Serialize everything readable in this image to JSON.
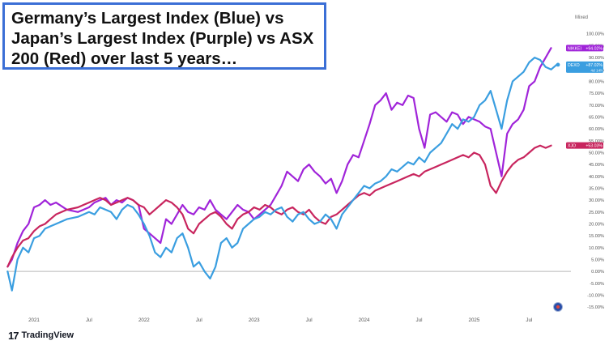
{
  "title": {
    "line1": "Germany’s Largest Index (Blue) vs",
    "line2": "Japan’s Largest Index (Purple) vs ASX",
    "line3": "200 (Red) over last 5 years…"
  },
  "scale_label": "Mixed",
  "brand": {
    "mark": "17",
    "name": "TradingView"
  },
  "colors": {
    "blue": "#3a9ee0",
    "purple": "#a024d9",
    "red": "#c8255e",
    "zero_line": "#b8b8b8",
    "axis_text": "#555555"
  },
  "chart_data": {
    "type": "line",
    "xlabel": "",
    "ylabel": "",
    "ylim": [
      -18,
      104
    ],
    "yticks": [
      -15,
      -10,
      -5,
      0,
      5,
      10,
      15,
      20,
      25,
      30,
      35,
      40,
      45,
      50,
      55,
      60,
      65,
      70,
      75,
      80,
      85,
      90,
      95,
      100
    ],
    "ytick_labels": [
      "-15.00%",
      "-10.00%",
      "-5.00%",
      "0.00%",
      "5.00%",
      "10.00%",
      "15.00%",
      "20.00%",
      "25.00%",
      "30.00%",
      "35.00%",
      "40.00%",
      "45.00%",
      "50.00%",
      "55.00%",
      "60.00%",
      "65.00%",
      "70.00%",
      "75.00%",
      "80.00%",
      "85.00%",
      "90.00%",
      "95.00%",
      "100.00%"
    ],
    "xlim": [
      2020.75,
      2025.88
    ],
    "xticks": [
      {
        "label": "2021",
        "x": 2021.0
      },
      {
        "label": "Jul",
        "x": 2021.5
      },
      {
        "label": "2022",
        "x": 2022.0
      },
      {
        "label": "Jul",
        "x": 2022.5
      },
      {
        "label": "2023",
        "x": 2023.0
      },
      {
        "label": "Jul",
        "x": 2023.5
      },
      {
        "label": "2024",
        "x": 2024.0
      },
      {
        "label": "Jul",
        "x": 2024.5
      },
      {
        "label": "2025",
        "x": 2025.0
      },
      {
        "label": "Jul",
        "x": 2025.5
      }
    ],
    "grid": false,
    "series": [
      {
        "name": "NIKKEI",
        "badge_value": "+94.02%",
        "color": "#a024d9",
        "x": [
          2020.76,
          2020.8,
          2020.85,
          2020.9,
          2020.95,
          2021.0,
          2021.05,
          2021.1,
          2021.15,
          2021.2,
          2021.3,
          2021.4,
          2021.45,
          2021.5,
          2021.55,
          2021.6,
          2021.65,
          2021.7,
          2021.75,
          2021.8,
          2021.85,
          2021.9,
          2021.95,
          2022.0,
          2022.05,
          2022.1,
          2022.15,
          2022.2,
          2022.25,
          2022.3,
          2022.35,
          2022.4,
          2022.45,
          2022.5,
          2022.55,
          2022.6,
          2022.65,
          2022.7,
          2022.75,
          2022.8,
          2022.85,
          2022.9,
          2022.95,
          2023.0,
          2023.05,
          2023.1,
          2023.15,
          2023.2,
          2023.25,
          2023.3,
          2023.35,
          2023.4,
          2023.45,
          2023.5,
          2023.55,
          2023.6,
          2023.65,
          2023.7,
          2023.75,
          2023.8,
          2023.85,
          2023.9,
          2023.95,
          2024.0,
          2024.05,
          2024.1,
          2024.15,
          2024.2,
          2024.25,
          2024.3,
          2024.35,
          2024.4,
          2024.45,
          2024.5,
          2024.55,
          2024.6,
          2024.65,
          2024.7,
          2024.75,
          2024.8,
          2024.85,
          2024.9,
          2024.95,
          2025.0,
          2025.05,
          2025.1,
          2025.15,
          2025.2,
          2025.25,
          2025.3,
          2025.35,
          2025.4,
          2025.45,
          2025.5,
          2025.55,
          2025.6,
          2025.65,
          2025.7
        ],
        "values": [
          2,
          5,
          12,
          17,
          20,
          27,
          28,
          30,
          28,
          29,
          26,
          25,
          26,
          27,
          29,
          30,
          31,
          28,
          30,
          29,
          31,
          30,
          28,
          18,
          16,
          14,
          12,
          22,
          20,
          24,
          28,
          25,
          24,
          27,
          26,
          30,
          26,
          24,
          22,
          25,
          28,
          26,
          25,
          22,
          24,
          26,
          28,
          32,
          36,
          42,
          40,
          38,
          43,
          45,
          42,
          40,
          37,
          39,
          33,
          38,
          45,
          49,
          48,
          55,
          62,
          70,
          72,
          75,
          68,
          71,
          70,
          74,
          73,
          60,
          52,
          66,
          67,
          65,
          63,
          67,
          66,
          62,
          65,
          64,
          63,
          61,
          60,
          50,
          40,
          58,
          62,
          64,
          68,
          78,
          80,
          86,
          90,
          94
        ]
      },
      {
        "name": "DEXO",
        "badge_value": "+87.02%",
        "badge_sub": "4d 14h",
        "color": "#3a9ee0",
        "x": [
          2020.76,
          2020.8,
          2020.85,
          2020.9,
          2020.95,
          2021.0,
          2021.05,
          2021.1,
          2021.15,
          2021.2,
          2021.3,
          2021.4,
          2021.45,
          2021.5,
          2021.55,
          2021.6,
          2021.65,
          2021.7,
          2021.75,
          2021.8,
          2021.85,
          2021.9,
          2021.95,
          2022.0,
          2022.05,
          2022.1,
          2022.15,
          2022.2,
          2022.25,
          2022.3,
          2022.35,
          2022.4,
          2022.45,
          2022.5,
          2022.55,
          2022.6,
          2022.65,
          2022.7,
          2022.75,
          2022.8,
          2022.85,
          2022.9,
          2022.95,
          2023.0,
          2023.05,
          2023.1,
          2023.15,
          2023.2,
          2023.25,
          2023.3,
          2023.35,
          2023.4,
          2023.45,
          2023.5,
          2023.55,
          2023.6,
          2023.65,
          2023.7,
          2023.75,
          2023.8,
          2023.85,
          2023.9,
          2023.95,
          2024.0,
          2024.05,
          2024.1,
          2024.15,
          2024.2,
          2024.25,
          2024.3,
          2024.35,
          2024.4,
          2024.45,
          2024.5,
          2024.55,
          2024.6,
          2024.65,
          2024.7,
          2024.75,
          2024.8,
          2024.85,
          2024.9,
          2024.95,
          2025.0,
          2025.05,
          2025.1,
          2025.15,
          2025.2,
          2025.25,
          2025.3,
          2025.35,
          2025.4,
          2025.45,
          2025.5,
          2025.55,
          2025.6,
          2025.65,
          2025.7,
          2025.75
        ],
        "values": [
          0,
          -8,
          5,
          10,
          8,
          14,
          15,
          18,
          19,
          20,
          22,
          23,
          24,
          25,
          24,
          27,
          26,
          25,
          22,
          26,
          28,
          27,
          24,
          20,
          15,
          8,
          6,
          10,
          8,
          14,
          16,
          10,
          2,
          4,
          0,
          -3,
          2,
          12,
          14,
          10,
          12,
          18,
          20,
          22,
          23,
          25,
          24,
          26,
          27,
          23,
          21,
          24,
          25,
          22,
          20,
          21,
          24,
          22,
          18,
          24,
          27,
          30,
          33,
          36,
          35,
          37,
          38,
          40,
          43,
          42,
          44,
          46,
          45,
          48,
          46,
          50,
          52,
          54,
          58,
          62,
          60,
          64,
          63,
          65,
          70,
          72,
          76,
          68,
          60,
          72,
          80,
          82,
          84,
          88,
          90,
          89,
          86,
          85,
          87
        ]
      },
      {
        "name": "XJO",
        "badge_value": "+53.03%",
        "color": "#c8255e",
        "x": [
          2020.76,
          2020.8,
          2020.85,
          2020.9,
          2020.95,
          2021.0,
          2021.05,
          2021.1,
          2021.15,
          2021.2,
          2021.3,
          2021.4,
          2021.45,
          2021.5,
          2021.55,
          2021.6,
          2021.65,
          2021.7,
          2021.75,
          2021.8,
          2021.85,
          2021.9,
          2021.95,
          2022.0,
          2022.05,
          2022.1,
          2022.15,
          2022.2,
          2022.25,
          2022.3,
          2022.35,
          2022.4,
          2022.45,
          2022.5,
          2022.55,
          2022.6,
          2022.65,
          2022.7,
          2022.75,
          2022.8,
          2022.85,
          2022.9,
          2022.95,
          2023.0,
          2023.05,
          2023.1,
          2023.15,
          2023.2,
          2023.25,
          2023.3,
          2023.35,
          2023.4,
          2023.45,
          2023.5,
          2023.55,
          2023.6,
          2023.65,
          2023.7,
          2023.75,
          2023.8,
          2023.85,
          2023.9,
          2023.95,
          2024.0,
          2024.05,
          2024.1,
          2024.15,
          2024.2,
          2024.25,
          2024.3,
          2024.35,
          2024.4,
          2024.45,
          2024.5,
          2024.55,
          2024.6,
          2024.65,
          2024.7,
          2024.75,
          2024.8,
          2024.85,
          2024.9,
          2024.95,
          2025.0,
          2025.05,
          2025.1,
          2025.15,
          2025.2,
          2025.25,
          2025.3,
          2025.35,
          2025.4,
          2025.45,
          2025.5,
          2025.55,
          2025.6,
          2025.65,
          2025.7
        ],
        "values": [
          2,
          6,
          10,
          13,
          14,
          17,
          19,
          20,
          22,
          24,
          26,
          27,
          28,
          29,
          30,
          31,
          30,
          28,
          29,
          30,
          31,
          30,
          28,
          27,
          24,
          26,
          28,
          30,
          29,
          27,
          24,
          18,
          16,
          20,
          22,
          24,
          25,
          23,
          20,
          18,
          22,
          24,
          25,
          27,
          26,
          28,
          27,
          25,
          24,
          26,
          27,
          25,
          24,
          26,
          23,
          21,
          20,
          23,
          24,
          26,
          28,
          30,
          32,
          33,
          32,
          34,
          35,
          36,
          37,
          38,
          39,
          40,
          41,
          40,
          42,
          43,
          44,
          45,
          46,
          47,
          48,
          49,
          48,
          50,
          49,
          45,
          36,
          33,
          38,
          42,
          45,
          47,
          48,
          50,
          52,
          53,
          52,
          53
        ]
      }
    ]
  }
}
